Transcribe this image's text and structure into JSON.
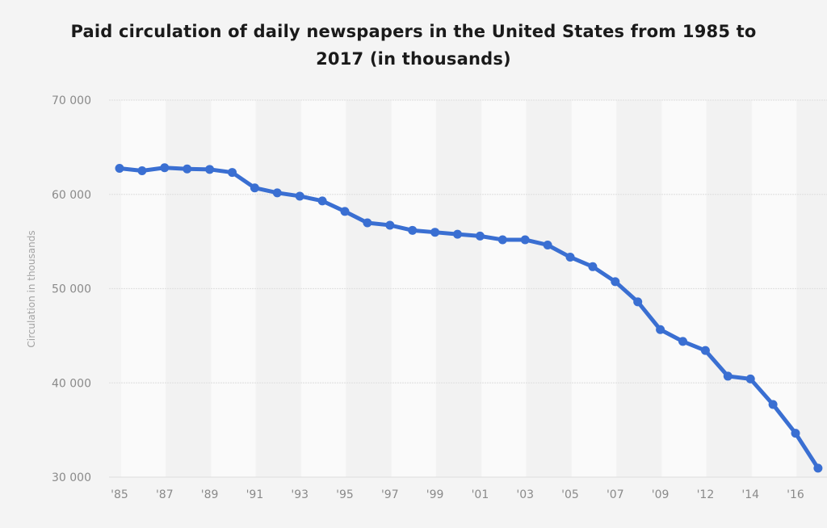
{
  "chart_data": {
    "type": "line",
    "title": "Paid circulation of daily newspapers in the United States from 1985 to 2017 (in thousands)",
    "title_lines": [
      "Paid circulation of daily newspapers in the United States from 1985 to",
      "2017 (in thousands)"
    ],
    "xlabel": "",
    "ylabel": "Circulation in thousands",
    "ylim": [
      30000,
      70000
    ],
    "y_ticks": [
      70000,
      60000,
      50000,
      40000,
      30000
    ],
    "y_tick_labels": [
      "70 000",
      "60 000",
      "50 000",
      "40 000",
      "30 000"
    ],
    "grid": true,
    "legend": "none",
    "x": [
      "'85",
      "'86",
      "'87",
      "'88",
      "'89",
      "'90",
      "'91",
      "'92",
      "'93",
      "'94",
      "'95",
      "'96",
      "'97",
      "'98",
      "'99",
      "'00",
      "'01",
      "'02",
      "'03",
      "'04",
      "'05",
      "'06",
      "'07",
      "'08",
      "'09",
      "'10",
      "'12",
      "'13",
      "'14",
      "'15",
      "'16",
      "'17"
    ],
    "x_tick_labels": [
      "'85",
      "'87",
      "'89",
      "'91",
      "'93",
      "'95",
      "'97",
      "'99",
      "'01",
      "'03",
      "'05",
      "'07",
      "'09",
      "'12",
      "'14",
      "'16"
    ],
    "series": [
      {
        "name": "Circulation in thousands",
        "color": "#3a6fd2",
        "values": [
          62766,
          62502,
          62826,
          62695,
          62649,
          62328,
          60687,
          60164,
          59812,
          59305,
          58193,
          56983,
          56728,
          56182,
          55979,
          55773,
          55578,
          55186,
          55185,
          54626,
          53345,
          52329,
          50742,
          48597,
          45653,
          44400,
          43433,
          40712,
          40420,
          37711,
          34657,
          30950
        ]
      }
    ]
  }
}
